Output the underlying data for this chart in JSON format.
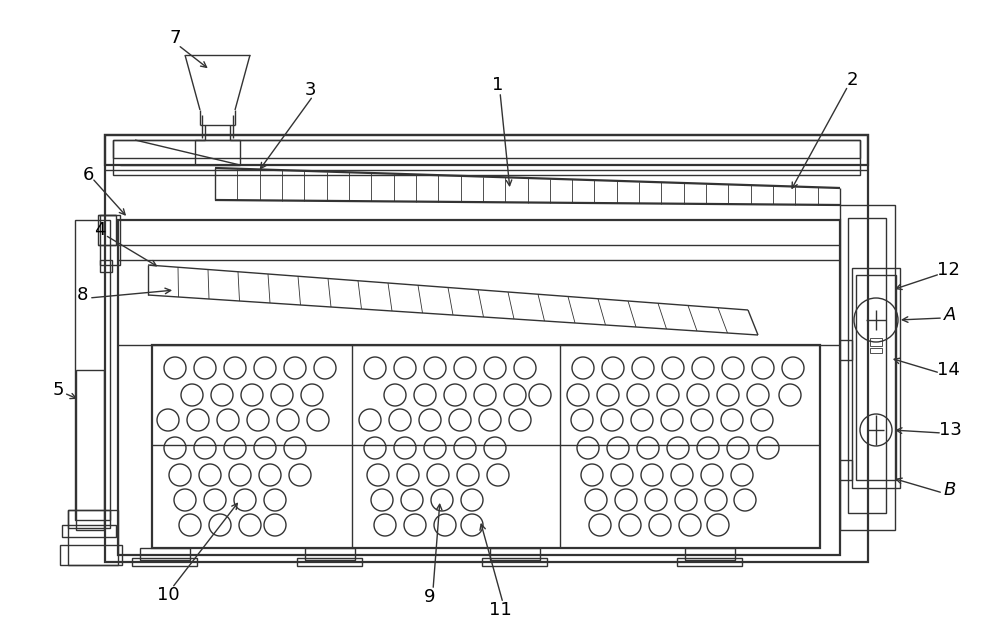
{
  "bg_color": "#ffffff",
  "line_color": "#333333",
  "lw": 1.0,
  "lw2": 1.6,
  "lw3": 0.6,
  "figsize": [
    10.0,
    6.37
  ],
  "dpi": 100,
  "label_fontsize": 13,
  "label_fontsize_sm": 12
}
